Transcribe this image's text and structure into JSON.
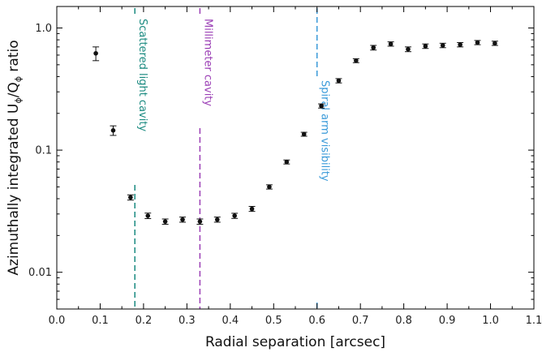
{
  "chart_data": {
    "type": "scatter",
    "xlabel": "Radial separation [arcsec]",
    "ylabel": "Azimuthally integrated U",
    "ylabel_sub1": "ϕ",
    "ylabel_mid": "/Q",
    "ylabel_sub2": "ϕ",
    "ylabel_end": " ratio",
    "xlim": [
      0.0,
      1.1
    ],
    "ylim": [
      0.005,
      1.5
    ],
    "yscale": "log",
    "xticks": [
      0.0,
      0.1,
      0.2,
      0.3,
      0.4,
      0.5,
      0.6,
      0.7,
      0.8,
      0.9,
      1.0,
      1.1
    ],
    "xtick_labels": [
      "0.0",
      "0.1",
      "0.2",
      "0.3",
      "0.4",
      "0.5",
      "0.6",
      "0.7",
      "0.8",
      "0.9",
      "1.0",
      "1.1"
    ],
    "yticks": [
      0.01,
      0.1,
      1.0
    ],
    "ytick_labels": [
      "0.01",
      "0.1",
      "1.0"
    ],
    "grid": false,
    "marker_color": "#111111",
    "points": [
      {
        "x": 0.09,
        "y": 0.62,
        "ylo": 0.54,
        "yhi": 0.7
      },
      {
        "x": 0.13,
        "y": 0.145,
        "ylo": 0.132,
        "yhi": 0.158
      },
      {
        "x": 0.17,
        "y": 0.041,
        "ylo": 0.039,
        "yhi": 0.043
      },
      {
        "x": 0.21,
        "y": 0.029,
        "ylo": 0.0275,
        "yhi": 0.0305
      },
      {
        "x": 0.25,
        "y": 0.026,
        "ylo": 0.0247,
        "yhi": 0.0273
      },
      {
        "x": 0.29,
        "y": 0.027,
        "ylo": 0.0257,
        "yhi": 0.0283
      },
      {
        "x": 0.33,
        "y": 0.026,
        "ylo": 0.0247,
        "yhi": 0.0273
      },
      {
        "x": 0.37,
        "y": 0.027,
        "ylo": 0.0257,
        "yhi": 0.0283
      },
      {
        "x": 0.41,
        "y": 0.029,
        "ylo": 0.0276,
        "yhi": 0.0304
      },
      {
        "x": 0.45,
        "y": 0.033,
        "ylo": 0.0315,
        "yhi": 0.0346
      },
      {
        "x": 0.49,
        "y": 0.05,
        "ylo": 0.048,
        "yhi": 0.052
      },
      {
        "x": 0.53,
        "y": 0.08,
        "ylo": 0.077,
        "yhi": 0.083
      },
      {
        "x": 0.57,
        "y": 0.135,
        "ylo": 0.13,
        "yhi": 0.14
      },
      {
        "x": 0.61,
        "y": 0.23,
        "ylo": 0.221,
        "yhi": 0.239
      },
      {
        "x": 0.65,
        "y": 0.37,
        "ylo": 0.355,
        "yhi": 0.385
      },
      {
        "x": 0.69,
        "y": 0.54,
        "ylo": 0.52,
        "yhi": 0.56
      },
      {
        "x": 0.73,
        "y": 0.69,
        "ylo": 0.66,
        "yhi": 0.72
      },
      {
        "x": 0.77,
        "y": 0.74,
        "ylo": 0.71,
        "yhi": 0.77
      },
      {
        "x": 0.81,
        "y": 0.67,
        "ylo": 0.64,
        "yhi": 0.7
      },
      {
        "x": 0.85,
        "y": 0.71,
        "ylo": 0.68,
        "yhi": 0.74
      },
      {
        "x": 0.89,
        "y": 0.72,
        "ylo": 0.69,
        "yhi": 0.75
      },
      {
        "x": 0.93,
        "y": 0.73,
        "ylo": 0.7,
        "yhi": 0.76
      },
      {
        "x": 0.97,
        "y": 0.76,
        "ylo": 0.73,
        "yhi": 0.79
      },
      {
        "x": 1.01,
        "y": 0.75,
        "ylo": 0.72,
        "yhi": 0.78
      }
    ],
    "annotations": [
      {
        "label": "Scattered light cavity",
        "x": 0.18,
        "color": "#1a8a80"
      },
      {
        "label": "Millimeter cavity",
        "x": 0.33,
        "color": "#9b3fb5"
      },
      {
        "label": "Spiral arm visibility",
        "x": 0.6,
        "color": "#3a9ad9"
      }
    ]
  }
}
